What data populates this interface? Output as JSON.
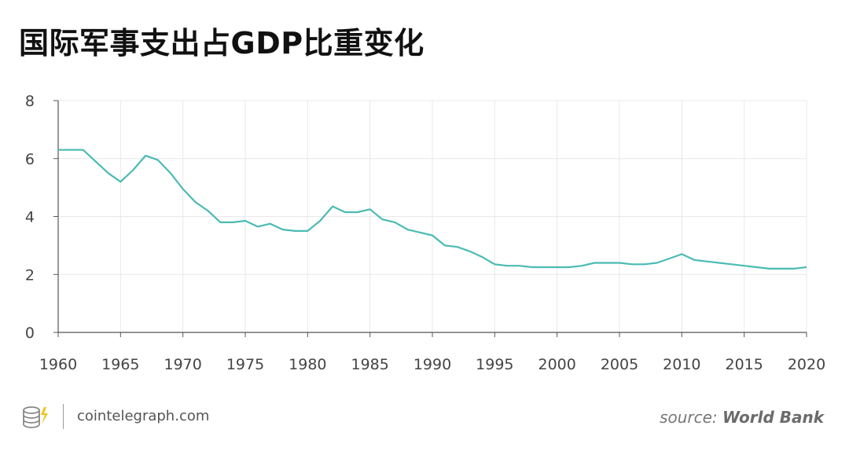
{
  "header": {
    "title": "国际军事支出占GDP比重变化"
  },
  "footer": {
    "site": "cointelegraph.com",
    "source_prefix": "source: ",
    "source_name": "World Bank",
    "logo_icon": "cointelegraph-coin-logo-icon"
  },
  "colors": {
    "line": "#4BBBB3",
    "grid": "#E8E8E8",
    "axis": "#555555",
    "tick_text": "#444444"
  },
  "chart_data": {
    "type": "line",
    "title": "国际军事支出占GDP比重变化",
    "xlabel": "",
    "ylabel": "",
    "xlim": [
      1960,
      2020
    ],
    "ylim": [
      0,
      8
    ],
    "xticks": [
      1960,
      1965,
      1970,
      1975,
      1980,
      1985,
      1990,
      1995,
      2000,
      2005,
      2010,
      2015,
      2020
    ],
    "yticks": [
      0,
      2,
      4,
      6,
      8
    ],
    "grid": true,
    "legend": "none",
    "series": [
      {
        "x": [
          1960,
          1961,
          1962,
          1963,
          1964,
          1965,
          1966,
          1967,
          1968,
          1969,
          1970,
          1971,
          1972,
          1973,
          1974,
          1975,
          1976,
          1977,
          1978,
          1979,
          1980,
          1981,
          1982,
          1983,
          1984,
          1985,
          1986,
          1987,
          1988,
          1989,
          1990,
          1991,
          1992,
          1993,
          1994,
          1995,
          1996,
          1997,
          1998,
          1999,
          2000,
          2001,
          2002,
          2003,
          2004,
          2005,
          2006,
          2007,
          2008,
          2009,
          2010,
          2011,
          2012,
          2013,
          2014,
          2015,
          2016,
          2017,
          2018,
          2019,
          2020
        ],
        "values": [
          6.3,
          6.3,
          6.3,
          5.9,
          5.5,
          5.2,
          5.6,
          6.1,
          5.95,
          5.5,
          4.95,
          4.5,
          4.2,
          3.8,
          3.8,
          3.85,
          3.65,
          3.75,
          3.55,
          3.5,
          3.5,
          3.85,
          4.35,
          4.15,
          4.15,
          4.25,
          3.9,
          3.8,
          3.55,
          3.45,
          3.35,
          3.0,
          2.95,
          2.8,
          2.6,
          2.35,
          2.3,
          2.3,
          2.25,
          2.25,
          2.25,
          2.25,
          2.3,
          2.4,
          2.4,
          2.4,
          2.35,
          2.35,
          2.4,
          2.55,
          2.7,
          2.5,
          2.45,
          2.4,
          2.35,
          2.3,
          2.25,
          2.2,
          2.2,
          2.2,
          2.25
        ]
      }
    ]
  }
}
